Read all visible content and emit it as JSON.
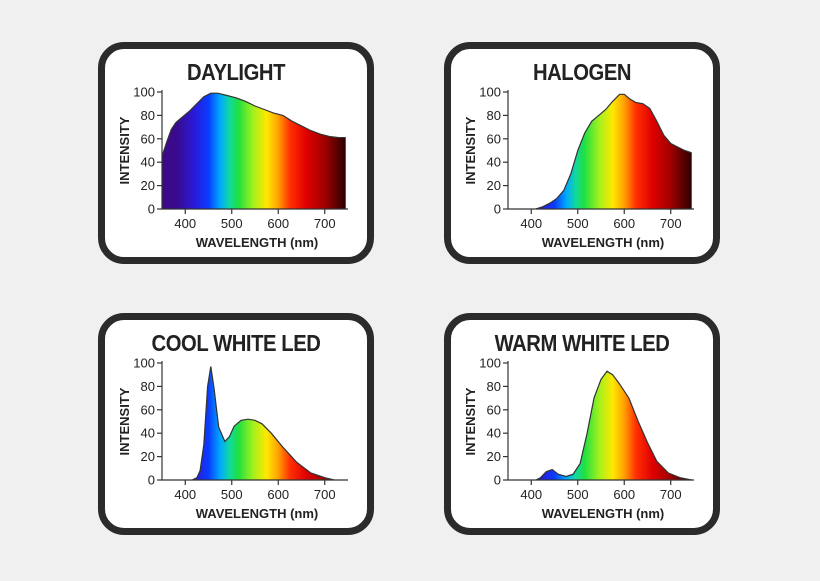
{
  "chart_data": [
    {
      "type": "area",
      "title": "DAYLIGHT",
      "xlabel": "WAVELENGTH (nm)",
      "ylabel": "INTENSITY",
      "xlim": [
        350,
        750
      ],
      "ylim": [
        0,
        100
      ],
      "xticks": [
        400,
        500,
        600,
        700
      ],
      "yticks": [
        0,
        20,
        40,
        60,
        80,
        100
      ],
      "fill": "spectrum",
      "points": [
        [
          350,
          45
        ],
        [
          360,
          57
        ],
        [
          370,
          68
        ],
        [
          380,
          74
        ],
        [
          395,
          79
        ],
        [
          410,
          84
        ],
        [
          425,
          90
        ],
        [
          440,
          96
        ],
        [
          455,
          99
        ],
        [
          470,
          99
        ],
        [
          490,
          97
        ],
        [
          510,
          95
        ],
        [
          530,
          92
        ],
        [
          550,
          88
        ],
        [
          570,
          85
        ],
        [
          590,
          82
        ],
        [
          610,
          80
        ],
        [
          630,
          75
        ],
        [
          650,
          71
        ],
        [
          670,
          67
        ],
        [
          690,
          64
        ],
        [
          710,
          62
        ],
        [
          730,
          61
        ],
        [
          745,
          61
        ]
      ]
    },
    {
      "type": "area",
      "title": "HALOGEN",
      "xlabel": "WAVELENGTH (nm)",
      "ylabel": "INTENSITY",
      "xlim": [
        350,
        750
      ],
      "ylim": [
        0,
        100
      ],
      "xticks": [
        400,
        500,
        600,
        700
      ],
      "yticks": [
        0,
        20,
        40,
        60,
        80,
        100
      ],
      "fill": "spectrum",
      "points": [
        [
          410,
          0
        ],
        [
          425,
          2
        ],
        [
          440,
          5
        ],
        [
          455,
          9
        ],
        [
          470,
          16
        ],
        [
          485,
          30
        ],
        [
          500,
          50
        ],
        [
          515,
          65
        ],
        [
          530,
          75
        ],
        [
          545,
          80
        ],
        [
          560,
          85
        ],
        [
          575,
          92
        ],
        [
          590,
          98
        ],
        [
          600,
          98
        ],
        [
          612,
          94
        ],
        [
          625,
          91
        ],
        [
          640,
          90
        ],
        [
          655,
          86
        ],
        [
          670,
          75
        ],
        [
          685,
          63
        ],
        [
          700,
          56
        ],
        [
          715,
          53
        ],
        [
          730,
          50
        ],
        [
          745,
          48
        ]
      ]
    },
    {
      "type": "area",
      "title": "COOL WHITE LED",
      "xlabel": "WAVELENGTH (nm)",
      "ylabel": "INTENSITY",
      "xlim": [
        350,
        750
      ],
      "ylim": [
        0,
        100
      ],
      "xticks": [
        400,
        500,
        600,
        700
      ],
      "yticks": [
        0,
        20,
        40,
        60,
        80,
        100
      ],
      "fill": "spectrum",
      "points": [
        [
          415,
          0
        ],
        [
          425,
          2
        ],
        [
          432,
          8
        ],
        [
          440,
          30
        ],
        [
          448,
          80
        ],
        [
          455,
          97
        ],
        [
          462,
          78
        ],
        [
          472,
          45
        ],
        [
          485,
          33
        ],
        [
          495,
          37
        ],
        [
          505,
          46
        ],
        [
          520,
          51
        ],
        [
          535,
          52
        ],
        [
          550,
          51
        ],
        [
          565,
          48
        ],
        [
          585,
          40
        ],
        [
          610,
          28
        ],
        [
          640,
          15
        ],
        [
          670,
          6
        ],
        [
          700,
          2
        ],
        [
          720,
          0
        ]
      ]
    },
    {
      "type": "area",
      "title": "WARM WHITE LED",
      "xlabel": "WAVELENGTH (nm)",
      "ylabel": "INTENSITY",
      "xlim": [
        350,
        750
      ],
      "ylim": [
        0,
        100
      ],
      "xticks": [
        400,
        500,
        600,
        700
      ],
      "yticks": [
        0,
        20,
        40,
        60,
        80,
        100
      ],
      "fill": "spectrum",
      "points": [
        [
          410,
          0
        ],
        [
          420,
          2
        ],
        [
          432,
          7
        ],
        [
          445,
          9
        ],
        [
          458,
          5
        ],
        [
          475,
          3
        ],
        [
          490,
          5
        ],
        [
          505,
          14
        ],
        [
          520,
          40
        ],
        [
          535,
          70
        ],
        [
          550,
          86
        ],
        [
          563,
          93
        ],
        [
          575,
          90
        ],
        [
          590,
          82
        ],
        [
          610,
          70
        ],
        [
          630,
          50
        ],
        [
          650,
          32
        ],
        [
          670,
          16
        ],
        [
          695,
          6
        ],
        [
          720,
          2
        ],
        [
          745,
          0
        ]
      ]
    }
  ]
}
